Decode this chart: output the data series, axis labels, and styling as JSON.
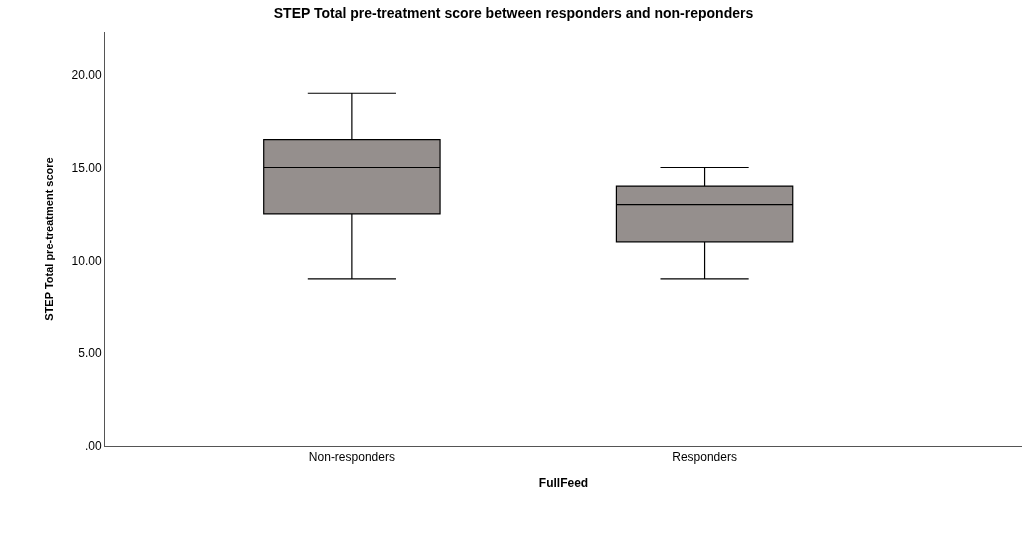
{
  "chart_data": {
    "type": "box",
    "title": "STEP Total pre-treatment score between responders and non-reponders",
    "xlabel": "FullFeed",
    "ylabel": "STEP Total pre-treatment score",
    "categories": [
      "Non-responders",
      "Responders"
    ],
    "boxes": [
      {
        "low": 9,
        "q1": 12.5,
        "median": 15,
        "q3": 16.5,
        "high": 19
      },
      {
        "low": 9,
        "q1": 11,
        "median": 13,
        "q3": 14,
        "high": 15
      }
    ],
    "color": "#958f8d",
    "ylim": [
      0,
      22.3
    ],
    "yticks": [
      {
        "value": 0,
        "label": ".00"
      },
      {
        "value": 5,
        "label": "5.00"
      },
      {
        "value": 10,
        "label": "10.00"
      },
      {
        "value": 15,
        "label": "15.00"
      },
      {
        "value": 20,
        "label": "20.00"
      }
    ],
    "tick_labels": "xy"
  }
}
